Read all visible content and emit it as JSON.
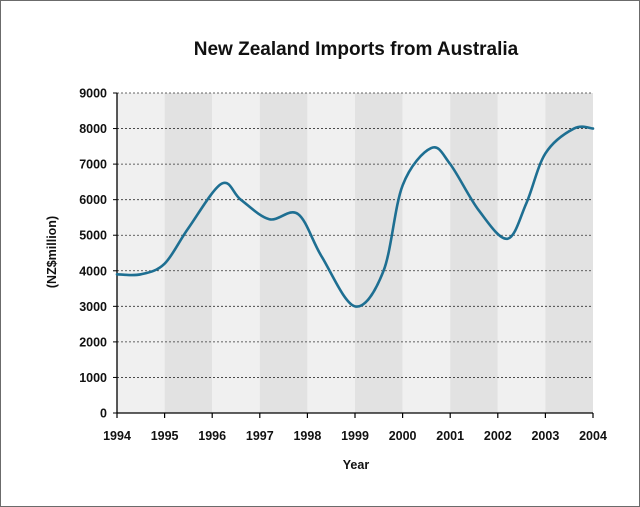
{
  "chart_data": {
    "type": "line",
    "title": "New Zealand Imports from Australia",
    "xlabel": "Year",
    "ylabel": "(NZ$million)",
    "x": [
      1994,
      1994.5,
      1995,
      1995.5,
      1996.2,
      1996.6,
      1997.2,
      1997.8,
      1998.3,
      1999.0,
      1999.6,
      2000.0,
      2000.6,
      2001.0,
      2001.6,
      2002.2,
      2002.6,
      2003.0,
      2003.6,
      2004.0
    ],
    "y": [
      3900,
      3900,
      4200,
      5200,
      6450,
      6000,
      5450,
      5600,
      4400,
      3000,
      4000,
      6400,
      7450,
      7000,
      5700,
      4900,
      5900,
      7300,
      8000,
      8000
    ],
    "xlim": [
      1994,
      2004
    ],
    "ylim": [
      0,
      9000
    ],
    "x_ticks": [
      "1994",
      "1995",
      "1996",
      "1997",
      "1998",
      "1999",
      "2000",
      "2001",
      "2002",
      "2003",
      "2004"
    ],
    "y_ticks": [
      "0",
      "1000",
      "2000",
      "3000",
      "4000",
      "5000",
      "6000",
      "7000",
      "8000",
      "9000"
    ],
    "grid": true,
    "line_color": "#1e6f92",
    "band_colors": [
      "#f0f0f0",
      "#e2e2e2"
    ]
  }
}
